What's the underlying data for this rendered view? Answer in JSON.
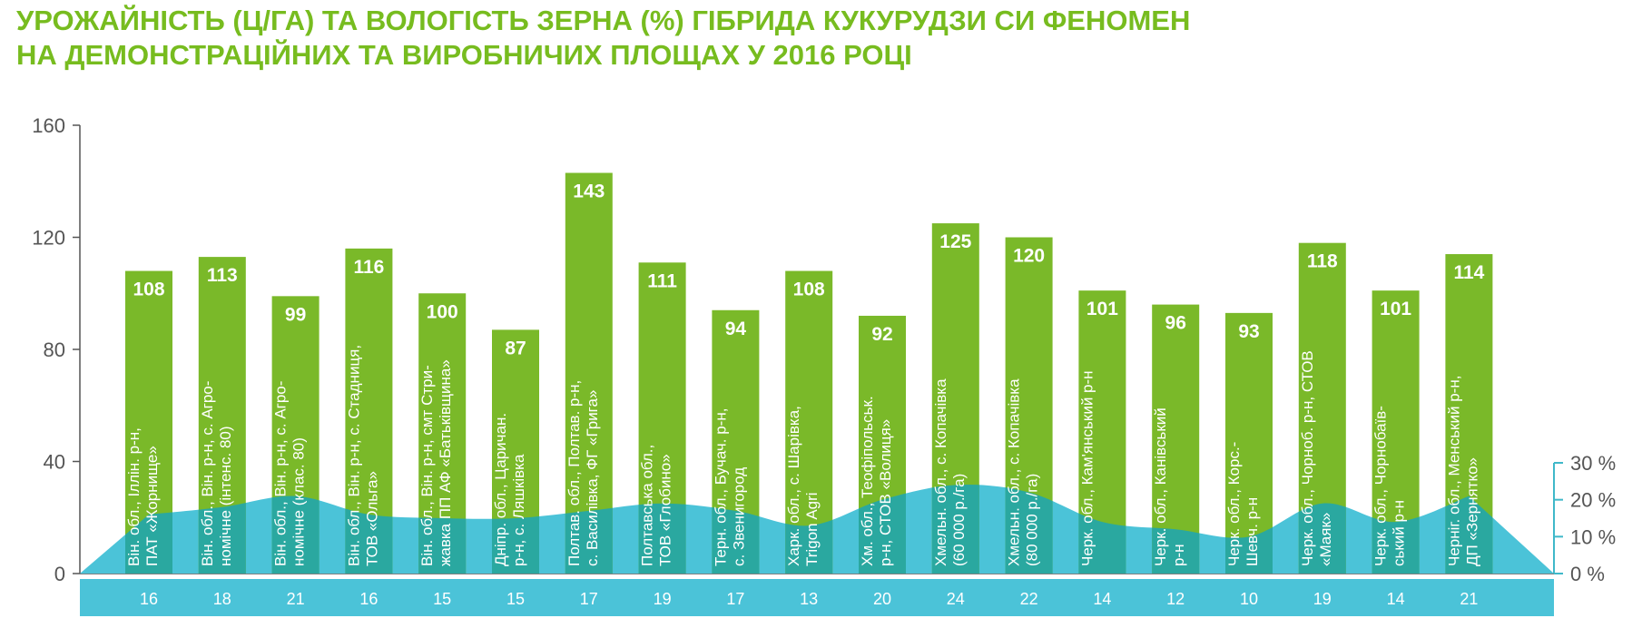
{
  "title_line1": "УРОЖАЙНІСТЬ (Ц/ГА) ТА ВОЛОГІСТЬ ЗЕРНА (%) ГІБРИДА КУКУРУДЗИ СИ ФЕНОМЕН",
  "title_line2": "НА ДЕМОНСТРАЦІЙНИХ ТА ВИРОБНИЧИХ ПЛОЩАХ У 2016 РОЦІ",
  "colors": {
    "title": "#77bc1f",
    "bar": "#7ab929",
    "moisture": "#4bc3d8",
    "bar_overlap": "#2aa8a0",
    "axis": "#555555",
    "right_axis": "#3fb8c9"
  },
  "chart_data": {
    "type": "bar",
    "y_axis": {
      "min": 0,
      "max": 160,
      "ticks": [
        "0",
        "40",
        "80",
        "120",
        "160"
      ]
    },
    "y2_axis": {
      "min": 0,
      "max": 30,
      "ticks": [
        "0 %",
        "10 %",
        "20 %",
        "30 %"
      ]
    },
    "categories": [
      [
        "Він. обл., Іллін. р-н,",
        "ПАТ «Жорнище»"
      ],
      [
        "Він. обл., Він. р-н, с. Агро-",
        "номічне (інтенс. 80)"
      ],
      [
        "Він. обл., Він. р-н, с. Агро-",
        "номічне (клас. 80)"
      ],
      [
        "Він. обл., Він. р-н, с. Стадниця,",
        "ТОВ «Ольга»"
      ],
      [
        "Він. обл., Він. р-н, смт Стри-",
        "жавка ПП АФ «Батьківщина»"
      ],
      [
        "Дніпр. обл., Царичан.",
        "р-н, с. Ляшківка"
      ],
      [
        "Полтав. обл., Полтав. р-н,",
        "с. Василівка, ФГ «Грига»"
      ],
      [
        "Полтавська обл.,",
        "ТОВ «Глобино»"
      ],
      [
        "Терн. обл., Бучач. р-н,",
        "с. Звенигород"
      ],
      [
        "Харк. обл., с. Шарівка,",
        "Trigon Agri"
      ],
      [
        "Хм. обл., Теофіпольськ.",
        "р-н, СТОВ «Волиця»"
      ],
      [
        "Хмельн. обл., с. Копачівка",
        "(60 000 р./га)"
      ],
      [
        "Хмельн. обл., с. Копачівка",
        "(80 000 р./га)"
      ],
      [
        "Черк. обл., Кам'янський р-н"
      ],
      [
        "Черк. обл., Канівський",
        "р-н"
      ],
      [
        "Черк. обл., Корс.-",
        "Шевч. р-н"
      ],
      [
        "Черк. обл., Чорноб. р-н, СТОВ",
        "«Маяк»"
      ],
      [
        "Черк. обл., Чорнобаїв-",
        "ський р-н"
      ],
      [
        "Черніг. обл., Менський р-н,",
        "ДП «Зернятко»"
      ]
    ],
    "series": [
      {
        "values": [
          108,
          113,
          99,
          116,
          100,
          87,
          143,
          111,
          94,
          108,
          92,
          125,
          120,
          101,
          96,
          93,
          118,
          101,
          114
        ]
      },
      {
        "values": [
          16,
          18,
          21,
          16,
          15,
          15,
          17,
          19,
          17,
          13,
          20,
          24,
          22,
          14,
          12,
          10,
          19,
          14,
          21
        ]
      }
    ]
  }
}
